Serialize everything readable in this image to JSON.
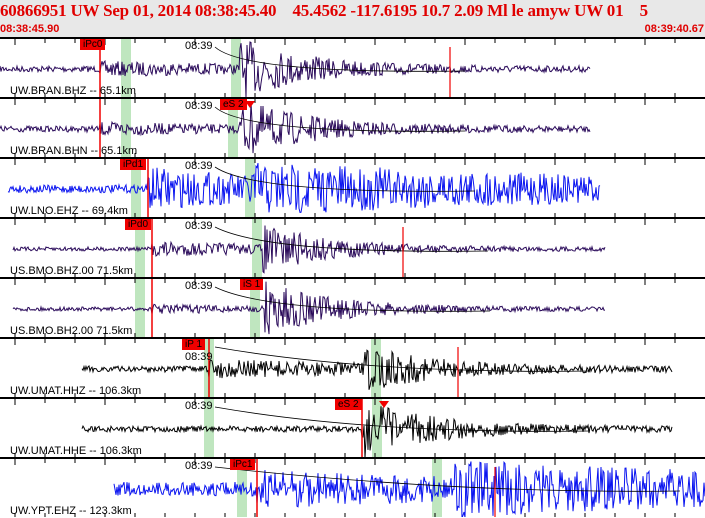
{
  "header": {
    "title": "60866951 UW Sep 01, 2014 08:38:45.40    45.4562 -117.6195 10.7 2.09 Ml le amyw UW 01    5",
    "start_time": "08:38:45.90",
    "end_time": "08:39:40.67"
  },
  "time_tick_label": "08:39",
  "colors": {
    "header_text": "#e00000",
    "pick": "#f00000",
    "band": "#bfe6bf",
    "purple": "#2a0a5a",
    "blue": "#0a14f0",
    "black": "#000000"
  },
  "panels": [
    {
      "channel": "UW.BRAN.BHZ -- 65.1km",
      "pick": "iPc0",
      "trace_color": "purple"
    },
    {
      "channel": "UW.BRAN.BHN -- 65.1km",
      "pick": "eS 2",
      "trace_color": "purple"
    },
    {
      "channel": "UW.LNO.EHZ -- 69.4km",
      "pick": "iPd1",
      "trace_color": "blue"
    },
    {
      "channel": "US.BMO.BHZ.00 71.5km",
      "pick": "iPd0",
      "trace_color": "purple"
    },
    {
      "channel": "US.BMO.BH2.00 71.5km",
      "pick": "iS 1",
      "trace_color": "purple"
    },
    {
      "channel": "UW.UMAT.HHZ -- 106.3km",
      "pick": "iP 1",
      "trace_color": "black"
    },
    {
      "channel": "UW.UMAT.HHE -- 106.3km",
      "pick": "eS 2",
      "trace_color": "black"
    },
    {
      "channel": "UW.YPT.EHZ -- 123.3km",
      "pick": "iPc1",
      "trace_color": "blue"
    }
  ]
}
